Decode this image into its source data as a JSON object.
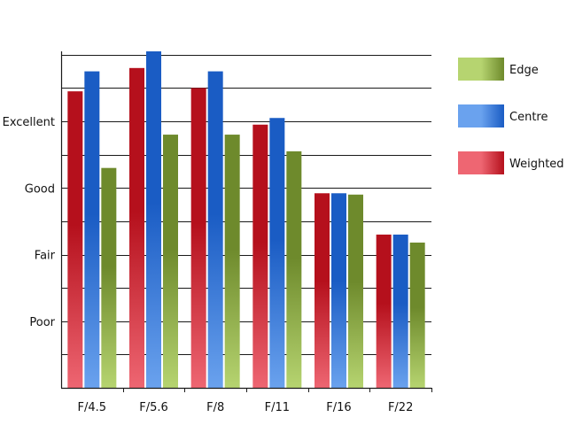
{
  "chart_data": {
    "type": "bar",
    "categories": [
      "F/4.5",
      "F/5.6",
      "F/8",
      "F/11",
      "F/16",
      "F/22"
    ],
    "series": [
      {
        "name": "Weighted",
        "values": [
          4.45,
          4.8,
          4.5,
          3.95,
          2.92,
          2.3
        ]
      },
      {
        "name": "Centre",
        "values": [
          4.75,
          5.05,
          4.75,
          4.05,
          2.92,
          2.3
        ]
      },
      {
        "name": "Edge",
        "values": [
          3.3,
          3.8,
          3.8,
          3.55,
          2.9,
          2.18
        ]
      }
    ],
    "y_tick_labels": [
      {
        "value": 1,
        "label": "Poor"
      },
      {
        "value": 2,
        "label": "Fair"
      },
      {
        "value": 3,
        "label": "Good"
      },
      {
        "value": 4,
        "label": "Excellent"
      }
    ],
    "ylim": [
      0,
      5.05
    ],
    "grid": true,
    "legend": {
      "placement": "right",
      "order": [
        "Edge",
        "Centre",
        "Weighted"
      ]
    },
    "colors": {
      "Weighted": {
        "dark": "#b5101c",
        "light": "#ee6672"
      },
      "Centre": {
        "dark": "#1a5cc4",
        "light": "#6aa2ee"
      },
      "Edge": {
        "dark": "#6e8a2c",
        "light": "#b6d470"
      }
    }
  }
}
